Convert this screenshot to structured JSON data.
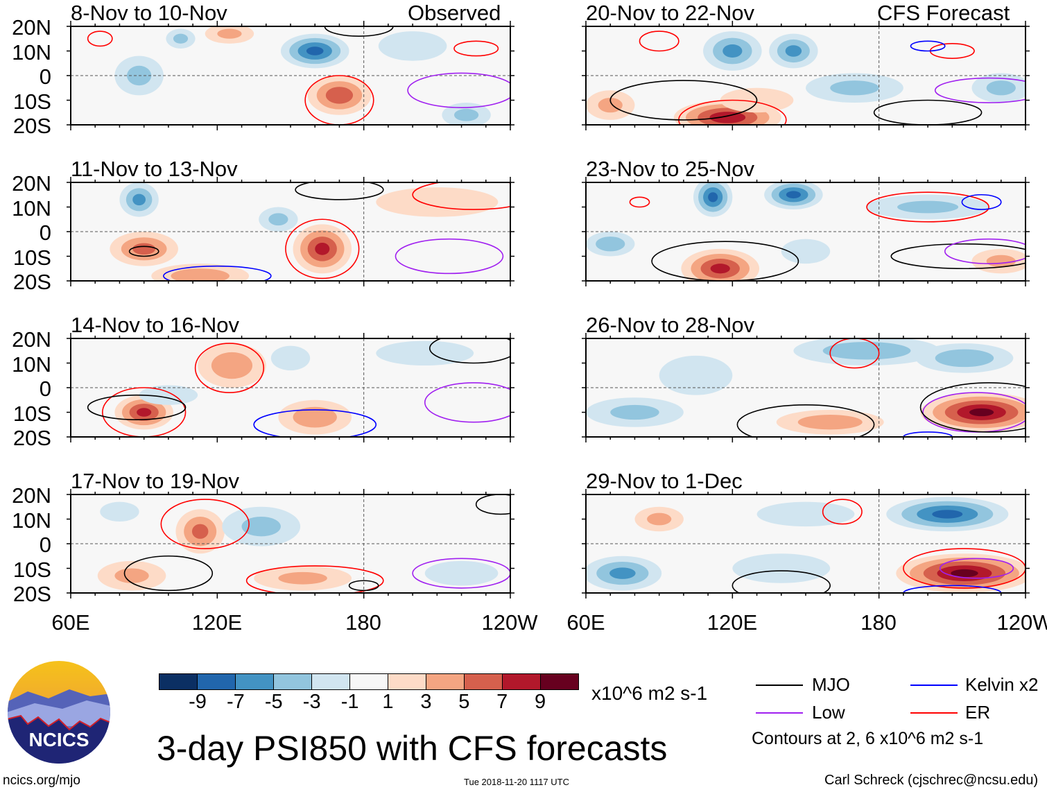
{
  "palette": [
    "#0b2f63",
    "#2166ac",
    "#4393c3",
    "#92c5de",
    "#d1e5f0",
    "#f7f7f7",
    "#fddbc7",
    "#f4a582",
    "#d6604d",
    "#b2182b",
    "#67001f"
  ],
  "line_colors": {
    "MJO": "#000000",
    "Low": "#a020f0",
    "Kelvin": "#0000ff",
    "ER": "#ff0000"
  },
  "labels": {
    "observed": "Observed",
    "forecast": "CFS Forecast"
  },
  "lat_labels": [
    "20N",
    "10N",
    "0",
    "10S",
    "20S"
  ],
  "lon_labels": [
    "60E",
    "120E",
    "180",
    "120W"
  ],
  "colorbar": {
    "ticks": [
      "-9",
      "-7",
      "-5",
      "-3",
      "-1",
      "1",
      "3",
      "5",
      "7",
      "9"
    ],
    "units": "x10^6 m2 s-1"
  },
  "legend": {
    "mjo": "MJO",
    "low": "Low",
    "kelvin": "Kelvin x2",
    "er": "ER",
    "contours": "Contours at 2, 6 x10^6 m2 s-1"
  },
  "title": "3-day PSI850 with CFS forecasts",
  "footer": {
    "url": "ncics.org/mjo",
    "timestamp": "Tue 2018-11-20 1117 UTC",
    "author": "Carl Schreck (cjschrec@ncsu.edu)"
  },
  "logo_text": "NCICS",
  "chart_data": {
    "type": "map",
    "lon_range": [
      60,
      240
    ],
    "lat_range": [
      -20,
      20
    ],
    "panels": [
      {
        "title": "8-Nov to 10-Nov",
        "blobs": [
          [
            160,
            10,
            14,
            7,
            -7
          ],
          [
            125,
            17,
            10,
            4,
            3
          ],
          [
            88,
            0,
            10,
            8,
            -3
          ],
          [
            170,
            -8,
            13,
            8,
            6
          ],
          [
            222,
            -16,
            10,
            5,
            -3
          ],
          [
            200,
            12,
            14,
            6,
            -2
          ],
          [
            105,
            15,
            6,
            4,
            -3
          ]
        ],
        "contours": [
          [
            170,
            -10,
            14,
            10,
            "ER"
          ],
          [
            220,
            -6,
            22,
            7,
            "Low"
          ],
          [
            178,
            20,
            14,
            4,
            "MJO"
          ],
          [
            226,
            11,
            9,
            3,
            "ER"
          ],
          [
            72,
            15,
            5,
            3,
            "ER"
          ]
        ]
      },
      {
        "title": "11-Nov to 13-Nov",
        "blobs": [
          [
            88,
            13,
            8,
            7,
            -5
          ],
          [
            90,
            -7,
            14,
            7,
            5
          ],
          [
            163,
            -7,
            12,
            10,
            7
          ],
          [
            113,
            -18,
            20,
            5,
            4
          ],
          [
            145,
            5,
            8,
            5,
            -3
          ],
          [
            210,
            12,
            25,
            6,
            2
          ]
        ],
        "contours": [
          [
            163,
            -7,
            15,
            12,
            "ER"
          ],
          [
            90,
            -8,
            6,
            2,
            "MJO"
          ],
          [
            225,
            15,
            25,
            6,
            "ER"
          ],
          [
            215,
            -10,
            22,
            7,
            "Low"
          ],
          [
            170,
            17,
            18,
            4,
            "MJO"
          ],
          [
            120,
            -18,
            22,
            4,
            "Kelvin"
          ]
        ]
      },
      {
        "title": "14-Nov to 16-Nov",
        "blobs": [
          [
            90,
            -10,
            12,
            7,
            7
          ],
          [
            126,
            9,
            14,
            9,
            4
          ],
          [
            160,
            -12,
            15,
            7,
            4
          ],
          [
            150,
            12,
            8,
            5,
            -2
          ],
          [
            100,
            -3,
            12,
            4,
            -2
          ],
          [
            205,
            14,
            20,
            5,
            -2
          ]
        ],
        "contours": [
          [
            90,
            -10,
            17,
            10,
            "ER"
          ],
          [
            125,
            8,
            14,
            10,
            "ER"
          ],
          [
            87,
            -8,
            20,
            5,
            "MJO"
          ],
          [
            160,
            -15,
            25,
            6,
            "Kelvin"
          ],
          [
            225,
            -6,
            20,
            8,
            "Low"
          ],
          [
            225,
            16,
            18,
            6,
            "MJO"
          ]
        ]
      },
      {
        "title": "17-Nov to 19-Nov",
        "blobs": [
          [
            113,
            5,
            10,
            9,
            5
          ],
          [
            138,
            7,
            16,
            8,
            -3
          ],
          [
            85,
            -13,
            14,
            6,
            3
          ],
          [
            155,
            -14,
            20,
            5,
            3
          ],
          [
            80,
            13,
            8,
            4,
            -2
          ],
          [
            220,
            -12,
            15,
            5,
            -2
          ]
        ],
        "contours": [
          [
            115,
            8,
            18,
            10,
            "ER"
          ],
          [
            100,
            -12,
            18,
            7,
            "MJO"
          ],
          [
            160,
            -15,
            28,
            6,
            "ER"
          ],
          [
            220,
            -12,
            20,
            6,
            "Low"
          ],
          [
            180,
            -17,
            6,
            2,
            "MJO"
          ],
          [
            236,
            16,
            10,
            4,
            "MJO"
          ]
        ]
      },
      {
        "title": "20-Nov to 22-Nov",
        "blobs": [
          [
            118,
            -17,
            22,
            7,
            8
          ],
          [
            120,
            10,
            12,
            8,
            -5
          ],
          [
            145,
            10,
            10,
            7,
            -5
          ],
          [
            130,
            -10,
            15,
            5,
            2
          ],
          [
            170,
            -5,
            20,
            6,
            -3
          ],
          [
            230,
            -5,
            12,
            6,
            -3
          ],
          [
            70,
            -12,
            10,
            6,
            3
          ]
        ],
        "contours": [
          [
            120,
            -18,
            22,
            8,
            "ER"
          ],
          [
            100,
            -10,
            30,
            8,
            "MJO"
          ],
          [
            200,
            -15,
            22,
            5,
            "MJO"
          ],
          [
            225,
            -6,
            22,
            5,
            "Low"
          ],
          [
            90,
            14,
            8,
            4,
            "ER"
          ],
          [
            210,
            10,
            9,
            3,
            "ER"
          ],
          [
            200,
            12,
            7,
            2,
            "Kelvin"
          ]
        ]
      },
      {
        "title": "23-Nov to 25-Nov",
        "blobs": [
          [
            115,
            -15,
            16,
            8,
            7
          ],
          [
            112,
            14,
            8,
            8,
            -7
          ],
          [
            145,
            15,
            12,
            6,
            -7
          ],
          [
            70,
            -5,
            10,
            5,
            -4
          ],
          [
            200,
            10,
            25,
            5,
            -3
          ],
          [
            150,
            -8,
            10,
            5,
            -2
          ],
          [
            230,
            -12,
            12,
            5,
            3
          ]
        ],
        "contours": [
          [
            117,
            -12,
            30,
            8,
            "MJO"
          ],
          [
            200,
            10,
            25,
            6,
            "ER"
          ],
          [
            215,
            -10,
            30,
            5,
            "MJO"
          ],
          [
            225,
            -8,
            18,
            5,
            "Low"
          ],
          [
            222,
            12,
            8,
            3,
            "Kelvin"
          ],
          [
            82,
            12,
            4,
            2,
            "ER"
          ]
        ]
      },
      {
        "title": "26-Nov to 28-Nov",
        "blobs": [
          [
            222,
            -10,
            25,
            8,
            9
          ],
          [
            160,
            -14,
            22,
            5,
            4
          ],
          [
            175,
            15,
            30,
            6,
            -4
          ],
          [
            215,
            12,
            20,
            6,
            -4
          ],
          [
            80,
            -10,
            20,
            6,
            -3
          ],
          [
            105,
            5,
            15,
            8,
            -2
          ]
        ],
        "contours": [
          [
            220,
            -10,
            22,
            8,
            "Low"
          ],
          [
            225,
            -8,
            28,
            10,
            "MJO"
          ],
          [
            150,
            -15,
            28,
            8,
            "MJO"
          ],
          [
            170,
            14,
            10,
            6,
            "ER"
          ],
          [
            200,
            -20,
            10,
            2,
            "Kelvin"
          ]
        ]
      },
      {
        "title": "29-Nov to 1-Dec",
        "blobs": [
          [
            215,
            -12,
            28,
            8,
            9
          ],
          [
            208,
            12,
            25,
            7,
            -7
          ],
          [
            75,
            -12,
            16,
            7,
            -5
          ],
          [
            90,
            10,
            10,
            5,
            3
          ],
          [
            140,
            -10,
            20,
            6,
            -2
          ],
          [
            150,
            12,
            20,
            5,
            -2
          ]
        ],
        "contours": [
          [
            215,
            -10,
            25,
            8,
            "ER"
          ],
          [
            220,
            -10,
            15,
            4,
            "Low"
          ],
          [
            140,
            -17,
            20,
            6,
            "MJO"
          ],
          [
            165,
            13,
            8,
            5,
            "ER"
          ],
          [
            210,
            -20,
            20,
            3,
            "Kelvin"
          ]
        ]
      }
    ]
  }
}
